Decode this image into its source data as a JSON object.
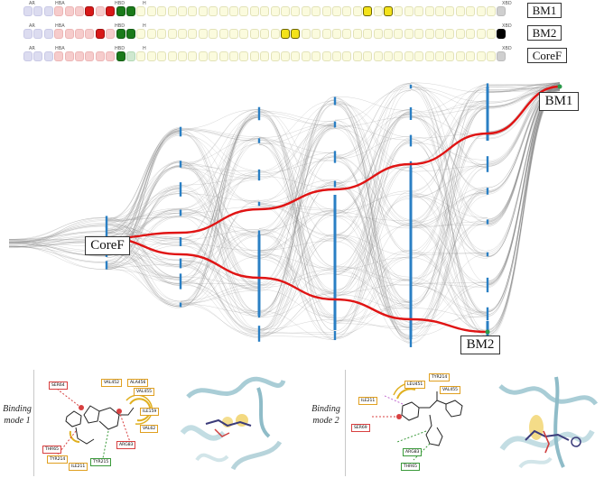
{
  "fingerprint_groups": [
    "AR",
    "HBA",
    "HBD",
    "H",
    "XBD"
  ],
  "fingerprints": [
    {
      "name": "BM1",
      "hba": [
        3,
        5
      ],
      "hba_light": [
        0,
        1,
        2,
        4
      ],
      "hbd": [
        7,
        8
      ],
      "hbd_light": [],
      "h": [
        22,
        24
      ],
      "xbd": "gray"
    },
    {
      "name": "BM2",
      "hba": [
        4
      ],
      "hba_light": [
        0,
        1,
        2,
        3,
        5
      ],
      "hbd": [
        7,
        8
      ],
      "hbd_light": [],
      "h": [
        14,
        15
      ],
      "xbd": "black"
    },
    {
      "name": "CoreF",
      "hba": [],
      "hba_light": [
        0,
        1,
        2,
        3,
        4,
        5
      ],
      "hbd": [
        7
      ],
      "hbd_light": [
        8
      ],
      "h": [],
      "xbd": "gray"
    }
  ],
  "colors": {
    "ar": "#dcdcf0",
    "hba_on": "#d81818",
    "hba_off": "#f6cccc",
    "hbd_on": "#1a7a1a",
    "hbd_off": "#cfe8d0",
    "h_off": "#fbfbde",
    "h_on": "#f3e21a",
    "xbd_gray": "#cfcfcf",
    "xbd_black": "#000000",
    "path": "#e01414",
    "node": "#2a7fc4"
  },
  "tree_labels": {
    "root": "CoreF",
    "top": "BM1",
    "bottom": "BM2"
  },
  "panels": [
    {
      "title_line1": "Binding",
      "title_line2": "mode 1",
      "residues": [
        {
          "label": "SER64",
          "color": "#d84040"
        },
        {
          "label": "VAL452",
          "color": "#e0a020"
        },
        {
          "label": "ALA456",
          "color": "#e0a020"
        },
        {
          "label": "VAL455",
          "color": "#e0a020"
        },
        {
          "label": "ILE159",
          "color": "#e0a020"
        },
        {
          "label": "VAL62",
          "color": "#e0a020"
        },
        {
          "label": "ARG83",
          "color": "#d84040"
        },
        {
          "label": "THR65",
          "color": "#d84040"
        },
        {
          "label": "TYR214",
          "color": "#e0a020"
        },
        {
          "label": "TYR215",
          "color": "#3a9a3a"
        },
        {
          "label": "ILE211",
          "color": "#e0a020"
        }
      ]
    },
    {
      "title_line1": "Binding",
      "title_line2": "mode 2",
      "residues": [
        {
          "label": "TYR214",
          "color": "#e0a020"
        },
        {
          "label": "LEU451",
          "color": "#e0a020"
        },
        {
          "label": "VAL455",
          "color": "#e0a020"
        },
        {
          "label": "ILE211",
          "color": "#e0a020"
        },
        {
          "label": "SER69",
          "color": "#d84040"
        },
        {
          "label": "ARG83",
          "color": "#3a9a3a"
        },
        {
          "label": "THR65",
          "color": "#3a9a3a"
        }
      ]
    }
  ]
}
